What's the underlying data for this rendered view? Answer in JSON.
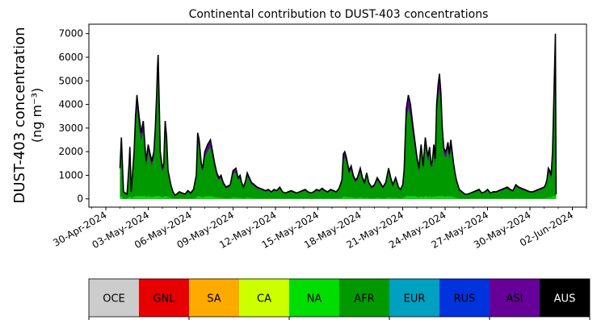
{
  "chart_data": {
    "type": "area",
    "title": "Continental contribution to DUST-403 concentrations",
    "ylabel_line1": "DUST-403 concentration",
    "ylabel_line2": "(ng m⁻³)",
    "xlabel": "",
    "ylim": [
      -350,
      7400
    ],
    "xlim": [
      -1.2,
      34.0
    ],
    "yticks": [
      0,
      1000,
      2000,
      3000,
      4000,
      5000,
      6000,
      7000
    ],
    "xticks": [
      {
        "x": 0,
        "label": "30-Apr-2024"
      },
      {
        "x": 3,
        "label": "03-May-2024"
      },
      {
        "x": 6,
        "label": "06-May-2024"
      },
      {
        "x": 9,
        "label": "09-May-2024"
      },
      {
        "x": 12,
        "label": "12-May-2024"
      },
      {
        "x": 15,
        "label": "15-May-2024"
      },
      {
        "x": 18,
        "label": "18-May-2024"
      },
      {
        "x": 21,
        "label": "21-May-2024"
      },
      {
        "x": 24,
        "label": "24-May-2024"
      },
      {
        "x": 27,
        "label": "27-May-2024"
      },
      {
        "x": 30,
        "label": "30-May-2024"
      },
      {
        "x": 33,
        "label": "02-Jun-2024"
      }
    ],
    "total": [
      [
        1.0,
        1300
      ],
      [
        1.1,
        2600
      ],
      [
        1.25,
        300
      ],
      [
        1.5,
        200
      ],
      [
        1.65,
        1500
      ],
      [
        1.7,
        2200
      ],
      [
        1.8,
        300
      ],
      [
        2.0,
        2000
      ],
      [
        2.1,
        3500
      ],
      [
        2.2,
        4400
      ],
      [
        2.35,
        3500
      ],
      [
        2.5,
        2800
      ],
      [
        2.65,
        3300
      ],
      [
        2.75,
        2400
      ],
      [
        2.85,
        1600
      ],
      [
        3.0,
        2300
      ],
      [
        3.1,
        2000
      ],
      [
        3.25,
        1600
      ],
      [
        3.4,
        2000
      ],
      [
        3.5,
        3000
      ],
      [
        3.6,
        4500
      ],
      [
        3.65,
        5500
      ],
      [
        3.7,
        6100
      ],
      [
        3.78,
        4000
      ],
      [
        3.85,
        2000
      ],
      [
        4.0,
        1300
      ],
      [
        4.1,
        1500
      ],
      [
        4.15,
        2500
      ],
      [
        4.2,
        3300
      ],
      [
        4.3,
        2600
      ],
      [
        4.4,
        1200
      ],
      [
        4.6,
        600
      ],
      [
        4.75,
        300
      ],
      [
        4.9,
        150
      ],
      [
        5.0,
        200
      ],
      [
        5.2,
        300
      ],
      [
        5.4,
        250
      ],
      [
        5.6,
        200
      ],
      [
        5.8,
        350
      ],
      [
        6.0,
        250
      ],
      [
        6.2,
        400
      ],
      [
        6.4,
        1000
      ],
      [
        6.5,
        2800
      ],
      [
        6.6,
        2500
      ],
      [
        6.75,
        1500
      ],
      [
        6.85,
        1300
      ],
      [
        7.0,
        2000
      ],
      [
        7.2,
        2300
      ],
      [
        7.4,
        2500
      ],
      [
        7.55,
        2000
      ],
      [
        7.7,
        1500
      ],
      [
        7.85,
        1100
      ],
      [
        8.0,
        900
      ],
      [
        8.15,
        1000
      ],
      [
        8.3,
        700
      ],
      [
        8.5,
        500
      ],
      [
        8.65,
        550
      ],
      [
        8.8,
        600
      ],
      [
        9.0,
        1200
      ],
      [
        9.2,
        1300
      ],
      [
        9.35,
        900
      ],
      [
        9.5,
        1000
      ],
      [
        9.6,
        700
      ],
      [
        9.75,
        500
      ],
      [
        9.9,
        800
      ],
      [
        10.0,
        1100
      ],
      [
        10.15,
        900
      ],
      [
        10.3,
        700
      ],
      [
        10.5,
        600
      ],
      [
        10.7,
        500
      ],
      [
        10.9,
        450
      ],
      [
        11.1,
        400
      ],
      [
        11.3,
        350
      ],
      [
        11.5,
        400
      ],
      [
        11.7,
        300
      ],
      [
        11.9,
        400
      ],
      [
        12.1,
        350
      ],
      [
        12.3,
        500
      ],
      [
        12.5,
        300
      ],
      [
        12.7,
        250
      ],
      [
        12.9,
        300
      ],
      [
        13.1,
        350
      ],
      [
        13.3,
        300
      ],
      [
        13.5,
        250
      ],
      [
        13.7,
        300
      ],
      [
        13.9,
        350
      ],
      [
        14.1,
        400
      ],
      [
        14.3,
        300
      ],
      [
        14.5,
        250
      ],
      [
        14.7,
        300
      ],
      [
        14.9,
        400
      ],
      [
        15.1,
        350
      ],
      [
        15.3,
        450
      ],
      [
        15.5,
        350
      ],
      [
        15.7,
        300
      ],
      [
        15.9,
        400
      ],
      [
        16.1,
        350
      ],
      [
        16.3,
        300
      ],
      [
        16.5,
        450
      ],
      [
        16.7,
        800
      ],
      [
        16.8,
        1900
      ],
      [
        16.9,
        2000
      ],
      [
        17.0,
        1800
      ],
      [
        17.1,
        1500
      ],
      [
        17.2,
        1200
      ],
      [
        17.35,
        1400
      ],
      [
        17.5,
        1000
      ],
      [
        17.65,
        800
      ],
      [
        17.8,
        900
      ],
      [
        18.0,
        1300
      ],
      [
        18.15,
        900
      ],
      [
        18.3,
        700
      ],
      [
        18.45,
        1100
      ],
      [
        18.6,
        700
      ],
      [
        18.8,
        500
      ],
      [
        19.0,
        600
      ],
      [
        19.2,
        900
      ],
      [
        19.4,
        700
      ],
      [
        19.6,
        500
      ],
      [
        19.8,
        700
      ],
      [
        20.0,
        1300
      ],
      [
        20.15,
        900
      ],
      [
        20.3,
        600
      ],
      [
        20.5,
        900
      ],
      [
        20.7,
        500
      ],
      [
        20.85,
        400
      ],
      [
        21.0,
        600
      ],
      [
        21.1,
        1200
      ],
      [
        21.25,
        3800
      ],
      [
        21.4,
        4400
      ],
      [
        21.55,
        4000
      ],
      [
        21.7,
        3200
      ],
      [
        21.85,
        2500
      ],
      [
        22.0,
        1800
      ],
      [
        22.15,
        1300
      ],
      [
        22.3,
        2300
      ],
      [
        22.45,
        1400
      ],
      [
        22.6,
        2600
      ],
      [
        22.7,
        2100
      ],
      [
        22.8,
        1800
      ],
      [
        22.9,
        2200
      ],
      [
        23.0,
        1500
      ],
      [
        23.1,
        1600
      ],
      [
        23.2,
        2300
      ],
      [
        23.3,
        1700
      ],
      [
        23.4,
        4000
      ],
      [
        23.5,
        4800
      ],
      [
        23.6,
        5300
      ],
      [
        23.7,
        4500
      ],
      [
        23.8,
        3000
      ],
      [
        23.9,
        2200
      ],
      [
        24.0,
        2000
      ],
      [
        24.1,
        2100
      ],
      [
        24.2,
        2400
      ],
      [
        24.3,
        1900
      ],
      [
        24.4,
        2500
      ],
      [
        24.5,
        2000
      ],
      [
        24.6,
        1500
      ],
      [
        24.7,
        1100
      ],
      [
        24.8,
        800
      ],
      [
        25.0,
        400
      ],
      [
        25.2,
        300
      ],
      [
        25.4,
        200
      ],
      [
        25.6,
        200
      ],
      [
        25.8,
        250
      ],
      [
        26.0,
        300
      ],
      [
        26.2,
        350
      ],
      [
        26.4,
        400
      ],
      [
        26.6,
        250
      ],
      [
        26.8,
        300
      ],
      [
        27.0,
        400
      ],
      [
        27.2,
        250
      ],
      [
        27.4,
        300
      ],
      [
        27.6,
        300
      ],
      [
        27.8,
        350
      ],
      [
        28.0,
        400
      ],
      [
        28.2,
        450
      ],
      [
        28.4,
        500
      ],
      [
        28.6,
        400
      ],
      [
        28.8,
        350
      ],
      [
        29.0,
        600
      ],
      [
        29.2,
        500
      ],
      [
        29.4,
        450
      ],
      [
        29.6,
        400
      ],
      [
        29.8,
        350
      ],
      [
        30.0,
        300
      ],
      [
        30.2,
        300
      ],
      [
        30.4,
        350
      ],
      [
        30.6,
        400
      ],
      [
        30.8,
        450
      ],
      [
        31.0,
        500
      ],
      [
        31.1,
        600
      ],
      [
        31.2,
        800
      ],
      [
        31.3,
        1300
      ],
      [
        31.4,
        1200
      ],
      [
        31.5,
        1000
      ],
      [
        31.6,
        2000
      ],
      [
        31.7,
        4500
      ],
      [
        31.8,
        7000
      ],
      [
        31.85,
        200
      ]
    ],
    "asi_fraction": 0.12,
    "na_fraction": 0.05,
    "line_color": "#000000",
    "fill_colors": {
      "top": "#660099",
      "main": "#009900",
      "base": "#00dd00"
    },
    "legend": [
      {
        "label": "OCE",
        "color": "#cccccc",
        "text_color": "#000000"
      },
      {
        "label": "GNL",
        "color": "#e60000",
        "text_color": "#000000"
      },
      {
        "label": "SA",
        "color": "#ffaa00",
        "text_color": "#000000"
      },
      {
        "label": "CA",
        "color": "#ccff00",
        "text_color": "#000000"
      },
      {
        "label": "NA",
        "color": "#00dd00",
        "text_color": "#000000"
      },
      {
        "label": "AFR",
        "color": "#009900",
        "text_color": "#000000"
      },
      {
        "label": "EUR",
        "color": "#00a0c0",
        "text_color": "#000000"
      },
      {
        "label": "RUS",
        "color": "#0033dd",
        "text_color": "#000000"
      },
      {
        "label": "ASI",
        "color": "#660099",
        "text_color": "#000000"
      },
      {
        "label": "AUS",
        "color": "#000000",
        "text_color": "#ffffff"
      }
    ]
  }
}
